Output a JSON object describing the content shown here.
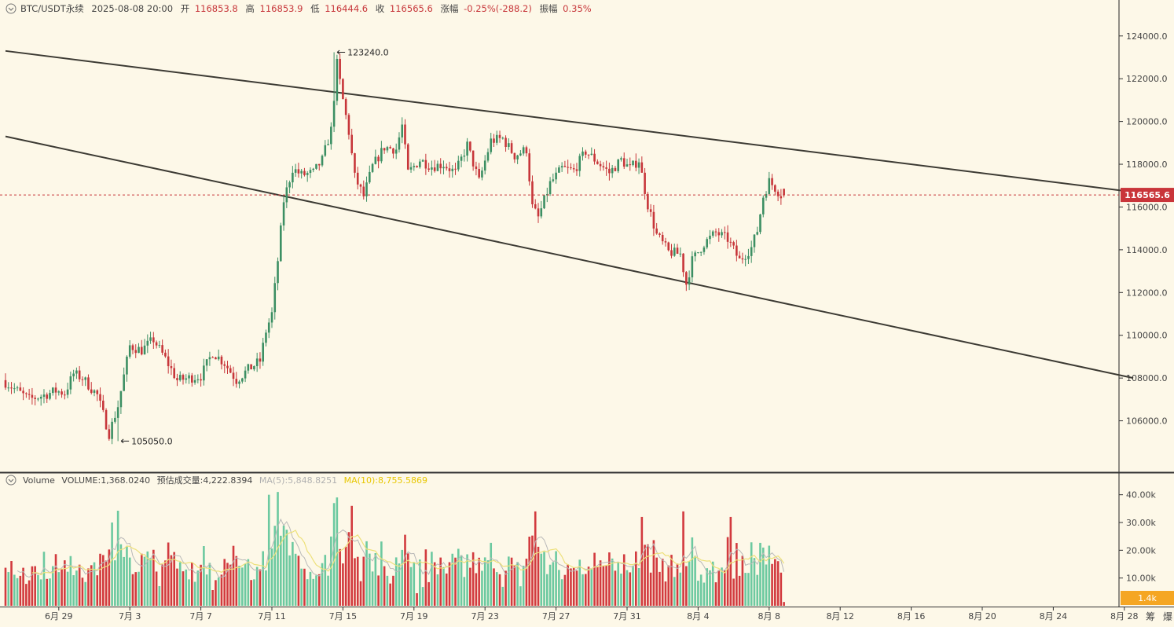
{
  "header": {
    "symbol": "BTC/USDT永续",
    "datetime": "2025-08-08 20:00",
    "open_label": "开",
    "open_value": "116853.8",
    "high_label": "高",
    "high_value": "116853.9",
    "low_label": "低",
    "low_value": "116444.6",
    "close_label": "收",
    "close_value": "116565.6",
    "change_label": "涨幅",
    "change_value": "-0.25%(-288.2)",
    "amplitude_label": "振幅",
    "amplitude_value": "0.35%"
  },
  "volume_header": {
    "label": "Volume",
    "volume_text": "VOLUME:1,368.0240",
    "est_text": "预估成交量:4,222.8394",
    "ma5_text": "MA(5):5,848.8251",
    "ma10_text": "MA(10):8,755.5869"
  },
  "markers": {
    "high": "123240.0",
    "low": "105050.0"
  },
  "current_price_label": "116565.6",
  "current_volume_label": "1.4k",
  "bottom_right_buttons": [
    "筹",
    "爆"
  ],
  "colors": {
    "background": "#fdf8e8",
    "up": "#3c8f63",
    "down": "#c7363a",
    "up_volume": "#6cc9a0",
    "down_volume": "#d23a3e",
    "trendline": "#3c3a33",
    "ma5": "#b8b8b8",
    "ma10": "#ede07a",
    "price_tag": "#c9353a",
    "volume_tag": "#f5a623"
  },
  "chart_data": {
    "type": "candlestick",
    "interval": "4h",
    "y_axis": {
      "ticks": [
        "106000.0",
        "108000.0",
        "110000.0",
        "112000.0",
        "114000.0",
        "116000.0",
        "118000.0",
        "120000.0",
        "122000.0",
        "124000.0"
      ],
      "range": [
        104000,
        124800
      ]
    },
    "volume_axis": {
      "ticks": [
        "10.00k",
        "20.00k",
        "30.00k",
        "40.00k"
      ],
      "range": [
        0,
        45000
      ]
    },
    "x_axis": {
      "ticks": [
        "6月 29",
        "7月 3",
        "7月 7",
        "7月 11",
        "7月 15",
        "7月 19",
        "7月 23",
        "7月 27",
        "7月 31",
        "8月 4",
        "8月 8",
        "8月 12",
        "8月 16",
        "8月 20",
        "8月 24",
        "8月 28"
      ],
      "tick_days": [
        3,
        7,
        11,
        15,
        19,
        23,
        27,
        31,
        35,
        39,
        43,
        47,
        51,
        55,
        59,
        63
      ],
      "first_candle_day": 0,
      "last_candle_day": 43.83
    },
    "price_anchors": [
      [
        "6月 26 00:00",
        107900
      ],
      [
        "6月 27 12:00",
        107000
      ],
      [
        "6月 28 08:00",
        107200
      ],
      [
        "6月 29 00:00",
        107400
      ],
      [
        "6月 29 12:00",
        107300
      ],
      [
        "6月 30 00:00",
        108200
      ],
      [
        "6月 30 12:00",
        108000
      ],
      [
        "7月 1 08:00",
        107200
      ],
      [
        "7月 2 00:00",
        105400
      ],
      [
        "7月 2 12:00",
        106700
      ],
      [
        "7月 3 04:00",
        109500
      ],
      [
        "7月 3 20:00",
        109300
      ],
      [
        "7月 4 12:00",
        109800
      ],
      [
        "7月 5 04:00",
        108900
      ],
      [
        "7月 5 20:00",
        107900
      ],
      [
        "7月 6 12:00",
        108000
      ],
      [
        "7月 7 04:00",
        108100
      ],
      [
        "7月 7 20:00",
        109200
      ],
      [
        "7月 8 12:00",
        108700
      ],
      [
        "7月 9 04:00",
        107900
      ],
      [
        "7月 9 20:00",
        108400
      ],
      [
        "7月 10 12:00",
        108800
      ],
      [
        "7月 10 20:00",
        110200
      ],
      [
        "7月 11 04:00",
        111000
      ],
      [
        "7月 11 12:00",
        113500
      ],
      [
        "7月 11 20:00",
        116300
      ],
      [
        "7月 12 08:00",
        117800
      ],
      [
        "7月 12 20:00",
        117500
      ],
      [
        "7月 13 12:00",
        117600
      ],
      [
        "7月 14 00:00",
        118200
      ],
      [
        "7月 14 12:00",
        119600
      ],
      [
        "7月 14 20:00",
        122700
      ],
      [
        "7月 15 04:00",
        121000
      ],
      [
        "7月 15 12:00",
        119500
      ],
      [
        "7月 15 20:00",
        117400
      ],
      [
        "7月 16 08:00",
        116500
      ],
      [
        "7月 16 20:00",
        117900
      ],
      [
        "7月 17 12:00",
        118800
      ],
      [
        "7月 18 04:00",
        118700
      ],
      [
        "7月 18 12:00",
        119800
      ],
      [
        "7月 18 20:00",
        117600
      ],
      [
        "7月 19 12:00",
        118200
      ],
      [
        "7月 20 04:00",
        117900
      ],
      [
        "7月 20 20:00",
        118000
      ],
      [
        "7月 21 12:00",
        117600
      ],
      [
        "7月 22 04:00",
        118900
      ],
      [
        "7月 22 20:00",
        117200
      ],
      [
        "7月 23 12:00",
        119100
      ],
      [
        "7月 24 04:00",
        119200
      ],
      [
        "7月 24 20:00",
        118400
      ],
      [
        "7月 25 12:00",
        118700
      ],
      [
        "7月 25 20:00",
        116000
      ],
      [
        "7月 26 04:00",
        115500
      ],
      [
        "7月 26 20:00",
        117100
      ],
      [
        "7月 27 12:00",
        117800
      ],
      [
        "7月 28 04:00",
        117700
      ],
      [
        "7月 28 20:00",
        118600
      ],
      [
        "7月 29 12:00",
        118100
      ],
      [
        "7月 30 04:00",
        117600
      ],
      [
        "7月 30 20:00",
        118200
      ],
      [
        "7月 31 08:00",
        117800
      ],
      [
        "7月 31 20:00",
        118200
      ],
      [
        "8月 1 08:00",
        116100
      ],
      [
        "8月 1 20:00",
        114700
      ],
      [
        "8月 2 12:00",
        113900
      ],
      [
        "8月 3 04:00",
        113800
      ],
      [
        "8月 3 12:00",
        112400
      ],
      [
        "8月 3 20:00",
        113500
      ],
      [
        "8月 4 12:00",
        114300
      ],
      [
        "8月 5 04:00",
        114800
      ],
      [
        "8月 5 20:00",
        114500
      ],
      [
        "8月 6 12:00",
        113500
      ],
      [
        "8月 7 04:00",
        114100
      ],
      [
        "8月 7 12:00",
        114900
      ],
      [
        "8月 7 20:00",
        116500
      ],
      [
        "8月 8 04:00",
        117200
      ],
      [
        "8月 8 12:00",
        116900
      ],
      [
        "8月 8 20:00",
        116566
      ]
    ],
    "extremes": {
      "high": {
        "time": "7月 14 12:00",
        "price": 123240.0
      },
      "low": {
        "time": "7月 2 08:00",
        "price": 105050.0
      }
    },
    "last_candle": {
      "time": "2025-08-08 20:00",
      "open": 116853.8,
      "high": 116853.9,
      "low": 116444.6,
      "close": 116565.6,
      "volume": 1368.024
    },
    "trendlines": [
      {
        "from": [
          "6月 26 00:00",
          123300
        ],
        "to": [
          "8月 28 12:00",
          116700
        ]
      },
      {
        "from": [
          "6月 26 00:00",
          119300
        ],
        "to": [
          "8月 28 12:00",
          108000
        ]
      }
    ],
    "current_price": 116565.6,
    "volume": {
      "tall_bars": [
        [
          "7月 2 00:00",
          30000
        ],
        [
          "7月 10 20:00",
          40000
        ],
        [
          "7月 11 08:00",
          41000
        ],
        [
          "7月 14 12:00",
          37000
        ],
        [
          "7月 15 12:00",
          36000
        ],
        [
          "7月 25 20:00",
          34000
        ],
        [
          "7月 31 20:00",
          32000
        ],
        [
          "8月 3 04:00",
          34000
        ],
        [
          "8月 5 20:00",
          32000
        ]
      ],
      "ma5": 5848.8251,
      "ma10": 8755.5869
    }
  }
}
